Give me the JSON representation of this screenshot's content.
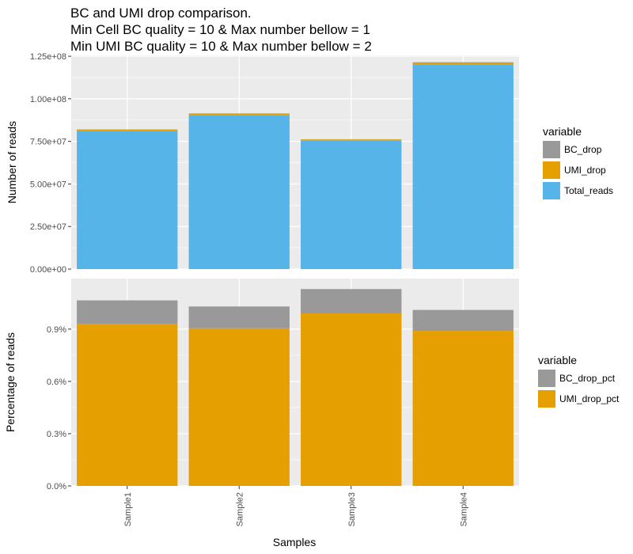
{
  "chart_data": {
    "title_lines": [
      "BC and UMI drop comparison.",
      "Min Cell BC quality = 10 & Max number bellow = 1",
      "Min UMI BC quality = 10 & Max number bellow = 2"
    ],
    "xlabel": "Samples",
    "categories": [
      "Sample1",
      "Sample2",
      "Sample3",
      "Sample4"
    ],
    "colors": {
      "grey": "#999999",
      "orange": "#E69F00",
      "blue": "#56B4E9",
      "panel_bg": "#EBEBEB",
      "grid": "#FFFFFF"
    },
    "panels": [
      {
        "type": "bar",
        "stacked": true,
        "ylabel": "Number of reads",
        "ylim": [
          0,
          125500000
        ],
        "yticks": [
          0,
          25000000,
          50000000,
          75000000,
          100000000,
          125000000
        ],
        "ytick_labels": [
          "0.00e+00",
          "2.50e+07",
          "5.00e+07",
          "7.50e+07",
          "1.00e+08",
          "1.25e+08"
        ],
        "legend_title": "variable",
        "legend_placement": "right",
        "series": [
          {
            "name": "Total_reads",
            "color": "#56B4E9",
            "values": [
              81200000,
              90500000,
              75400000,
              120300000
            ]
          },
          {
            "name": "UMI_drop",
            "color": "#E69F00",
            "values": [
              750000,
              820000,
              750000,
              1070000
            ]
          },
          {
            "name": "BC_drop",
            "color": "#999999",
            "values": [
              110000,
              110000,
              100000,
              150000
            ]
          }
        ],
        "legend_order": [
          "BC_drop",
          "UMI_drop",
          "Total_reads"
        ]
      },
      {
        "type": "bar",
        "stacked": true,
        "ylabel": "Percentage of reads",
        "ylim": [
          0,
          1.19
        ],
        "yticks": [
          0,
          0.3,
          0.6,
          0.9
        ],
        "ytick_labels": [
          "0.0%",
          "0.3%",
          "0.6%",
          "0.9%"
        ],
        "legend_title": "variable",
        "legend_placement": "right",
        "series": [
          {
            "name": "UMI_drop_pct",
            "color": "#E69F00",
            "values": [
              0.93,
              0.905,
              0.99,
              0.89
            ]
          },
          {
            "name": "BC_drop_pct",
            "color": "#999999",
            "values": [
              0.135,
              0.125,
              0.14,
              0.12
            ]
          }
        ],
        "legend_order": [
          "BC_drop_pct",
          "UMI_drop_pct"
        ]
      }
    ]
  }
}
